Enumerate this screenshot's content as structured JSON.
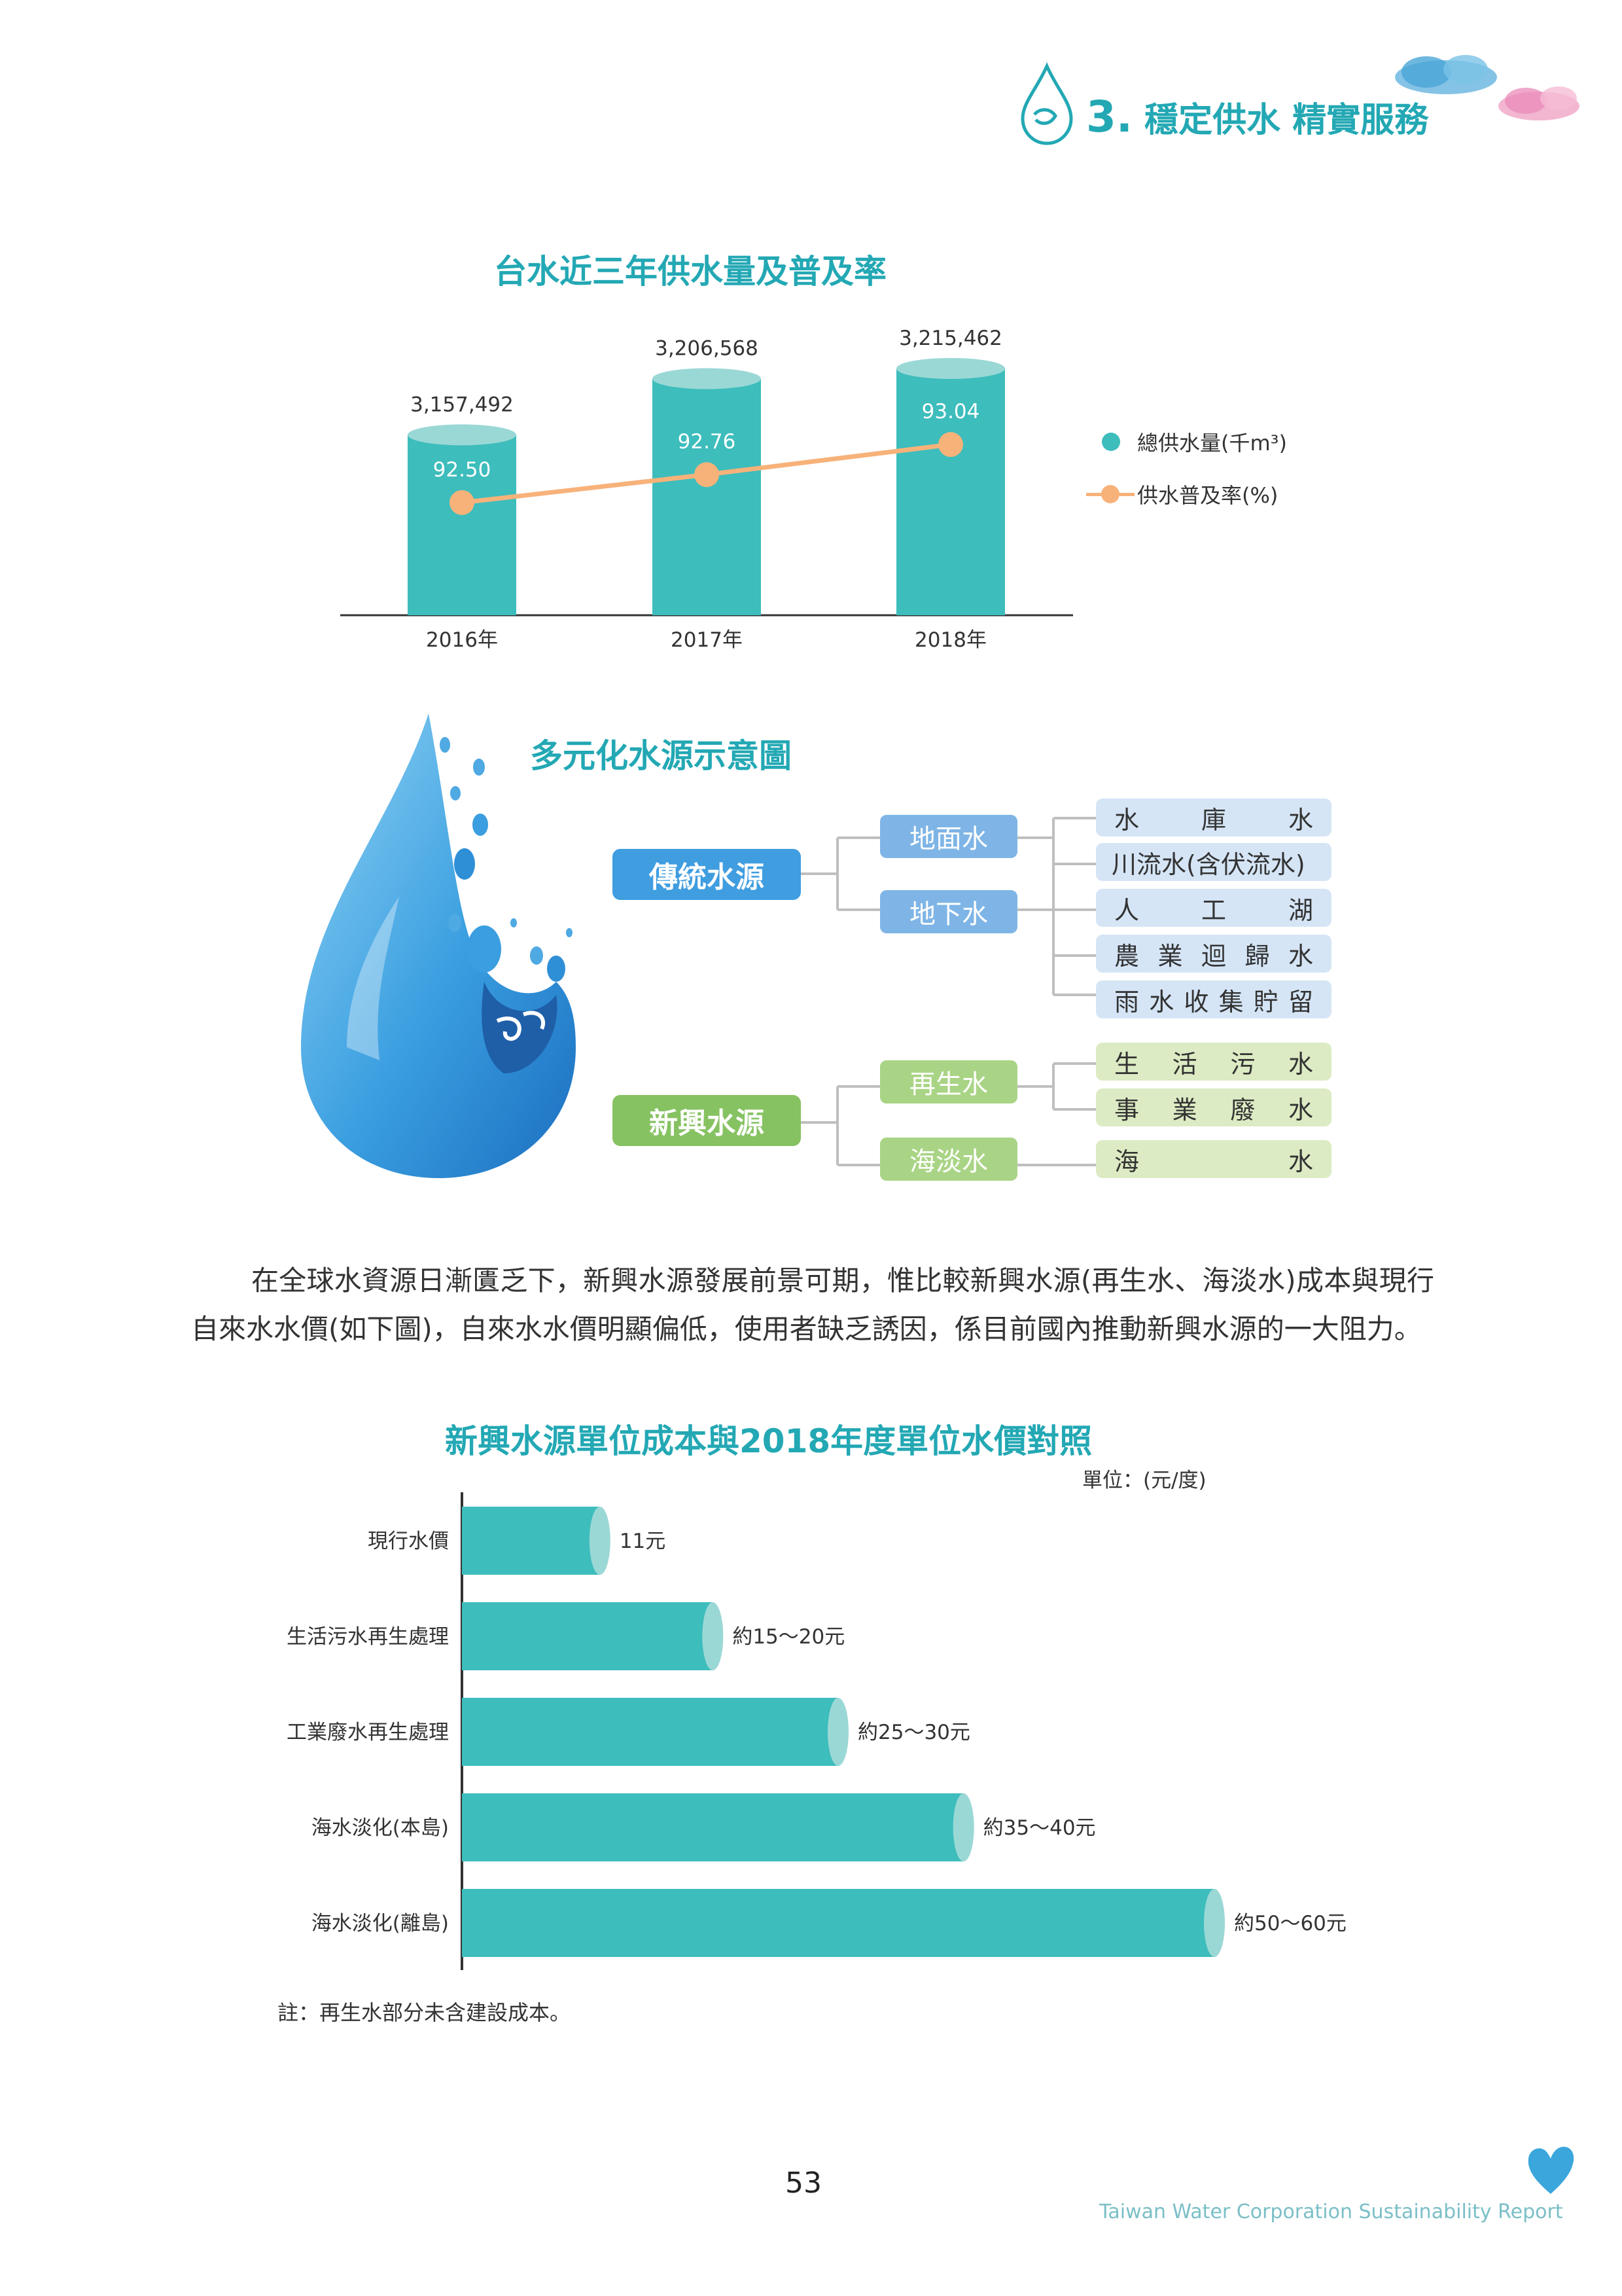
{
  "header": {
    "section_number": "3.",
    "section_title": "穩定供水 精實服務"
  },
  "colors": {
    "teal": "#3dbdbc",
    "orange": "#f7b27a",
    "title_teal": "#23a8b4",
    "blue_box": "#4a9fdc",
    "green_box": "#8cc465"
  },
  "chart_supply": {
    "title": "台水近三年供水量及普及率",
    "legend": {
      "supply": "總供水量(千m³)",
      "rate": "供水普及率(%)"
    }
  },
  "chart_data": [
    {
      "type": "bar",
      "title": "台水近三年供水量及普及率",
      "categories": [
        "2016年",
        "2017年",
        "2018年"
      ],
      "series": [
        {
          "name": "總供水量(千m³)",
          "type": "bar",
          "values": [
            3157492,
            3206568,
            3215462
          ],
          "labels": [
            "3,157,492",
            "3,206,568",
            "3,215,462"
          ]
        },
        {
          "name": "供水普及率(%)",
          "type": "line",
          "values": [
            92.5,
            92.76,
            93.04
          ],
          "labels": [
            "92.50",
            "92.76",
            "93.04"
          ]
        }
      ]
    },
    {
      "type": "bar",
      "orientation": "horizontal",
      "title": "新興水源單位成本與2018年度單位水價對照",
      "unit": "單位：(元/度)",
      "categories": [
        "現行水價",
        "生活污水再生處理",
        "工業廢水再生處理",
        "海水淡化(本島)",
        "海水淡化(離島)"
      ],
      "values": [
        11,
        20,
        30,
        40,
        60
      ],
      "value_labels": [
        "11元",
        "約15～20元",
        "約25～30元",
        "約35～40元",
        "約50～60元"
      ]
    }
  ],
  "diagram": {
    "title": "多元化水源示意圖",
    "traditional": {
      "label": "傳統水源",
      "sub": [
        "地面水",
        "地下水"
      ],
      "leaves": [
        [
          "水",
          "庫",
          "水"
        ],
        [
          "川流水(含伏流水)"
        ],
        [
          "人",
          "工",
          "湖"
        ],
        [
          "農",
          "業",
          "迴",
          "歸",
          "水"
        ],
        [
          "雨",
          "水",
          "收",
          "集",
          "貯",
          "留"
        ]
      ]
    },
    "new": {
      "label": "新興水源",
      "sub": [
        "再生水",
        "海淡水"
      ],
      "leaves": [
        [
          "生",
          "活",
          "污",
          "水"
        ],
        [
          "事",
          "業",
          "廢",
          "水"
        ],
        [
          "海",
          "水"
        ]
      ]
    }
  },
  "paragraph": "在全球水資源日漸匱乏下，新興水源發展前景可期，惟比較新興水源(再生水、海淡水)成本與現行自來水水價(如下圖)，自來水水價明顯偏低，使用者缺乏誘因，係目前國內推動新興水源的一大阻力。",
  "chart_cost": {
    "title": "新興水源單位成本與2018年度單位水價對照",
    "unit": "單位：(元/度)",
    "note": "註：再生水部分未含建設成本。"
  },
  "footer": {
    "page_number": "53",
    "report_name": "Taiwan Water Corporation Sustainability Report"
  }
}
